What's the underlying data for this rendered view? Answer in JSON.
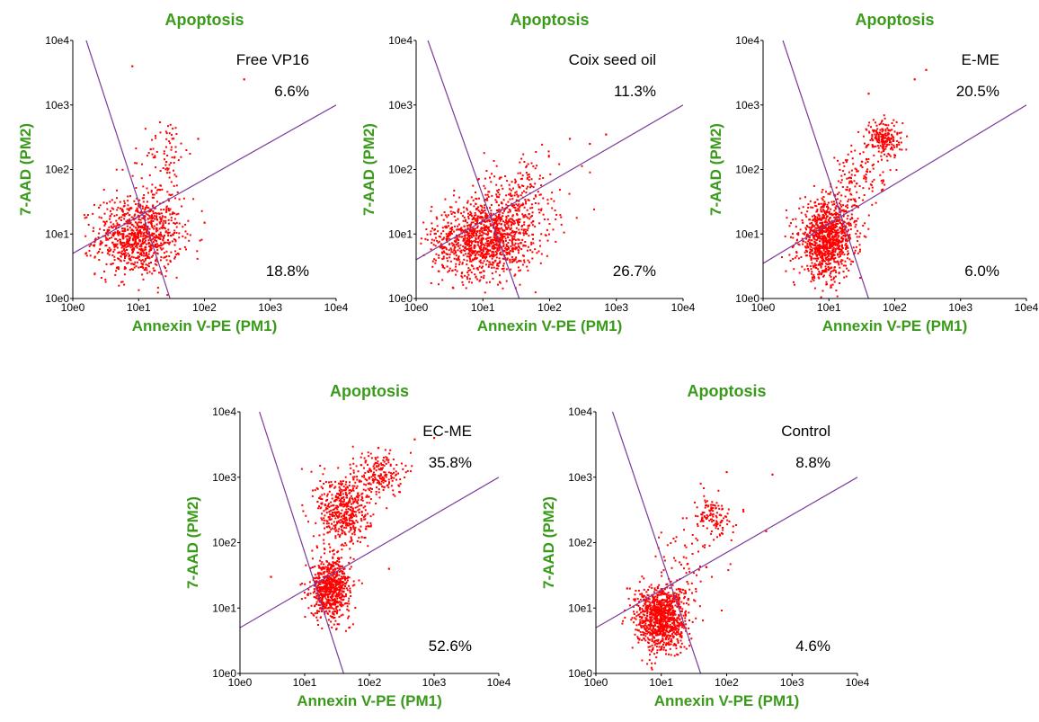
{
  "colors": {
    "title": "#3a9a1a",
    "points": "#ff0000",
    "gate": "#7a3a9a",
    "axis": "#000000"
  },
  "chart_data": [
    {
      "type": "scatter",
      "title": "Apoptosis",
      "xlabel": "Annexin V-PE (PM1)",
      "ylabel": "7-AAD (PM2)",
      "xscale": "log",
      "yscale": "log",
      "xlim": [
        1,
        10000
      ],
      "ylim": [
        1,
        10000
      ],
      "xticks": [
        "10e0",
        "10e1",
        "10e2",
        "10e3",
        "10e4"
      ],
      "yticks": [
        "10e0",
        "10e1",
        "10e2",
        "10e3",
        "10e4"
      ],
      "sample_label": "Free VP16",
      "upper_right_percent": "6.6%",
      "lower_right_percent": "18.8%",
      "gate_lines": [
        {
          "x": [
            1.6,
            30
          ],
          "y": [
            10000,
            1
          ]
        },
        {
          "x": [
            1,
            10000
          ],
          "y": [
            5,
            1000
          ]
        }
      ],
      "clusters": [
        {
          "cx": 10,
          "cy": 9,
          "sx": 0.32,
          "sy": 0.3,
          "n": 900
        },
        {
          "cx": 28,
          "cy": 200,
          "sx": 0.15,
          "sy": 0.25,
          "n": 60
        },
        {
          "cx": 18,
          "cy": 40,
          "sx": 0.25,
          "sy": 0.35,
          "n": 60
        }
      ],
      "outliers": [
        {
          "x": 400,
          "y": 2500
        },
        {
          "x": 80,
          "y": 300
        },
        {
          "x": 8,
          "y": 4000
        },
        {
          "x": 100,
          "y": 15
        }
      ]
    },
    {
      "type": "scatter",
      "title": "Apoptosis",
      "xlabel": "Annexin V-PE (PM1)",
      "ylabel": "7-AAD (PM2)",
      "xscale": "log",
      "yscale": "log",
      "xlim": [
        1,
        10000
      ],
      "ylim": [
        1,
        10000
      ],
      "xticks": [
        "10e0",
        "10e1",
        "10e2",
        "10e3",
        "10e4"
      ],
      "yticks": [
        "10e0",
        "10e1",
        "10e2",
        "10e3",
        "10e4"
      ],
      "sample_label": "Coix seed oil",
      "upper_right_percent": "11.3%",
      "lower_right_percent": "26.7%",
      "gate_lines": [
        {
          "x": [
            1.5,
            35
          ],
          "y": [
            10000,
            1
          ]
        },
        {
          "x": [
            1,
            10000
          ],
          "y": [
            4,
            1000
          ]
        }
      ],
      "clusters": [
        {
          "cx": 10,
          "cy": 8,
          "sx": 0.38,
          "sy": 0.28,
          "n": 1100
        },
        {
          "cx": 25,
          "cy": 25,
          "sx": 0.3,
          "sy": 0.3,
          "n": 250
        },
        {
          "cx": 60,
          "cy": 60,
          "sx": 0.35,
          "sy": 0.3,
          "n": 60
        }
      ],
      "outliers": [
        {
          "x": 400,
          "y": 250
        },
        {
          "x": 200,
          "y": 300
        },
        {
          "x": 700,
          "y": 350
        },
        {
          "x": 3,
          "y": 15
        }
      ]
    },
    {
      "type": "scatter",
      "title": "Apoptosis",
      "xlabel": "Annexin V-PE (PM1)",
      "ylabel": "7-AAD (PM2)",
      "xscale": "log",
      "yscale": "log",
      "xlim": [
        1,
        10000
      ],
      "ylim": [
        1,
        10000
      ],
      "xticks": [
        "10e0",
        "10e1",
        "10e2",
        "10e3",
        "10e4"
      ],
      "yticks": [
        "10e0",
        "10e1",
        "10e2",
        "10e3",
        "10e4"
      ],
      "sample_label": "E-ME",
      "upper_right_percent": "20.5%",
      "lower_right_percent": "6.0%",
      "gate_lines": [
        {
          "x": [
            2,
            40
          ],
          "y": [
            10000,
            1
          ]
        },
        {
          "x": [
            1,
            10000
          ],
          "y": [
            3.5,
            1000
          ]
        }
      ],
      "clusters": [
        {
          "cx": 9,
          "cy": 8,
          "sx": 0.2,
          "sy": 0.28,
          "n": 1000
        },
        {
          "cx": 70,
          "cy": 300,
          "sx": 0.13,
          "sy": 0.15,
          "n": 200
        },
        {
          "cx": 30,
          "cy": 80,
          "sx": 0.18,
          "sy": 0.25,
          "n": 100
        },
        {
          "cx": 20,
          "cy": 20,
          "sx": 0.2,
          "sy": 0.3,
          "n": 80
        }
      ],
      "outliers": [
        {
          "x": 300,
          "y": 3500
        },
        {
          "x": 200,
          "y": 2500
        },
        {
          "x": 40,
          "y": 1500
        },
        {
          "x": 4,
          "y": 15
        }
      ]
    },
    {
      "type": "scatter",
      "title": "Apoptosis",
      "xlabel": "Annexin V-PE (PM1)",
      "ylabel": "7-AAD (PM2)",
      "xscale": "log",
      "yscale": "log",
      "xlim": [
        1,
        10000
      ],
      "ylim": [
        1,
        10000
      ],
      "xticks": [
        "10e0",
        "10e1",
        "10e2",
        "10e3",
        "10e4"
      ],
      "yticks": [
        "10e0",
        "10e1",
        "10e2",
        "10e3",
        "10e4"
      ],
      "sample_label": "EC-ME",
      "upper_right_percent": "35.8%",
      "lower_right_percent": "52.6%",
      "gate_lines": [
        {
          "x": [
            2,
            40
          ],
          "y": [
            10000,
            1
          ]
        },
        {
          "x": [
            1,
            10000
          ],
          "y": [
            5,
            1000
          ]
        }
      ],
      "clusters": [
        {
          "cx": 25,
          "cy": 20,
          "sx": 0.15,
          "sy": 0.22,
          "n": 700
        },
        {
          "cx": 40,
          "cy": 300,
          "sx": 0.2,
          "sy": 0.3,
          "n": 500
        },
        {
          "cx": 140,
          "cy": 1100,
          "sx": 0.18,
          "sy": 0.18,
          "n": 200
        }
      ],
      "outliers": [
        {
          "x": 1000,
          "y": 4000
        },
        {
          "x": 500,
          "y": 3800
        },
        {
          "x": 3,
          "y": 30
        },
        {
          "x": 200,
          "y": 40
        }
      ]
    },
    {
      "type": "scatter",
      "title": "Apoptosis",
      "xlabel": "Annexin V-PE (PM1)",
      "ylabel": "7-AAD (PM2)",
      "xscale": "log",
      "yscale": "log",
      "xlim": [
        1,
        10000
      ],
      "ylim": [
        1,
        10000
      ],
      "xticks": [
        "10e0",
        "10e1",
        "10e2",
        "10e3",
        "10e4"
      ],
      "yticks": [
        "10e0",
        "10e1",
        "10e2",
        "10e3",
        "10e4"
      ],
      "sample_label": "Control",
      "upper_right_percent": "8.8%",
      "lower_right_percent": "4.6%",
      "gate_lines": [
        {
          "x": [
            1.8,
            40
          ],
          "y": [
            10000,
            1
          ]
        },
        {
          "x": [
            1,
            10000
          ],
          "y": [
            5,
            1000
          ]
        }
      ],
      "clusters": [
        {
          "cx": 10,
          "cy": 7,
          "sx": 0.2,
          "sy": 0.25,
          "n": 1000
        },
        {
          "cx": 60,
          "cy": 250,
          "sx": 0.15,
          "sy": 0.15,
          "n": 120
        },
        {
          "cx": 25,
          "cy": 50,
          "sx": 0.2,
          "sy": 0.35,
          "n": 70
        }
      ],
      "outliers": [
        {
          "x": 100,
          "y": 1200
        },
        {
          "x": 500,
          "y": 1100
        },
        {
          "x": 400,
          "y": 150
        },
        {
          "x": 3,
          "y": 20
        }
      ]
    }
  ]
}
